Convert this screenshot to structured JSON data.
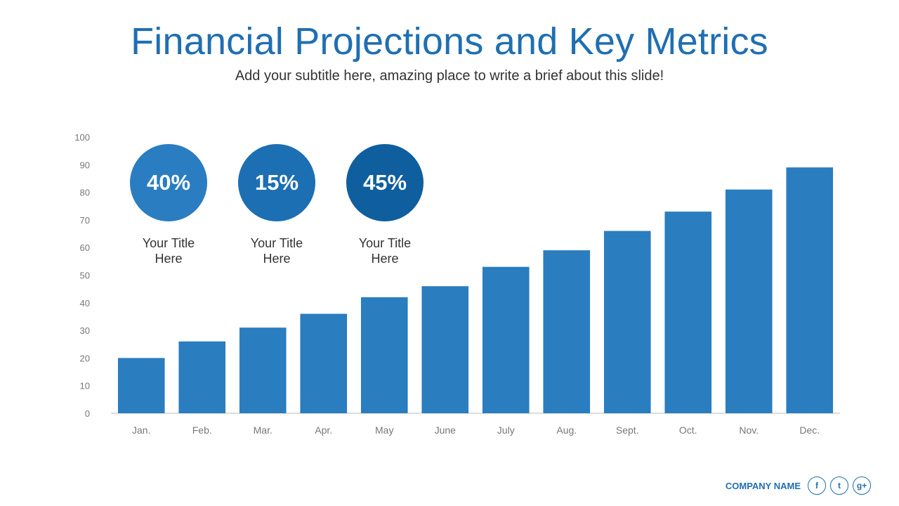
{
  "header": {
    "title": "Financial Projections and Key Metrics",
    "subtitle": "Add your subtitle here, amazing place to write a brief about this slide!"
  },
  "stats": [
    {
      "value": "40%",
      "label": "Your Title\nHere",
      "color": "#2a7dc0"
    },
    {
      "value": "15%",
      "label": "Your Title\nHere",
      "color": "#1c6fb3"
    },
    {
      "value": "45%",
      "label": "Your Title\nHere",
      "color": "#0f5f9e"
    }
  ],
  "chart_data": {
    "type": "bar",
    "categories": [
      "Jan.",
      "Feb.",
      "Mar.",
      "Apr.",
      "May",
      "June",
      "July",
      "Aug.",
      "Sept.",
      "Oct.",
      "Nov.",
      "Dec."
    ],
    "values": [
      20,
      26,
      31,
      36,
      42,
      46,
      53,
      59,
      66,
      73,
      81,
      89
    ],
    "ylim": [
      0,
      100
    ],
    "yticks": [
      0,
      10,
      20,
      30,
      40,
      50,
      60,
      70,
      80,
      90,
      100
    ],
    "bar_color": "#2a7dbf",
    "grid": false
  },
  "footer": {
    "company": "COMPANY NAME",
    "social": [
      {
        "icon": "facebook-icon",
        "glyph": "f"
      },
      {
        "icon": "twitter-icon",
        "glyph": "t"
      },
      {
        "icon": "google-plus-icon",
        "glyph": "g+"
      }
    ]
  }
}
